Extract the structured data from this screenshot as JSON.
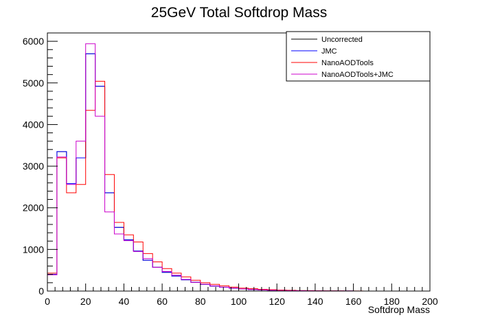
{
  "chart_data": {
    "type": "line",
    "title": "25GeV Total Softdrop Mass",
    "xlabel": "Softdrop Mass",
    "ylabel": "",
    "xlim": [
      0,
      200
    ],
    "ylim": [
      0,
      6200
    ],
    "x_ticks": [
      0,
      20,
      40,
      60,
      80,
      100,
      120,
      140,
      160,
      180,
      200
    ],
    "y_ticks": [
      0,
      1000,
      2000,
      3000,
      4000,
      5000,
      6000
    ],
    "grid": false,
    "legend_placement": "top-right",
    "bin_edges": [
      0,
      5,
      10,
      15,
      20,
      25,
      30,
      35,
      40,
      45,
      50,
      55,
      60,
      65,
      70,
      75,
      80,
      85,
      90,
      95,
      100,
      105,
      110,
      115,
      120,
      125,
      130,
      135,
      140,
      145,
      150,
      155,
      160,
      165,
      170,
      175,
      180,
      185,
      190,
      195,
      200
    ],
    "series": [
      {
        "name": "Uncorrected",
        "color": "#000000",
        "values": [
          400,
          3350,
          2580,
          3200,
          5700,
          4920,
          2360,
          1530,
          1230,
          960,
          740,
          570,
          450,
          360,
          270,
          210,
          160,
          120,
          90,
          70,
          50,
          35,
          28,
          20,
          15,
          10,
          8,
          6,
          4,
          3,
          2,
          2,
          1,
          1,
          1,
          0,
          0,
          0,
          0,
          0
        ]
      },
      {
        "name": "JMC",
        "color": "#0000ff",
        "values": [
          400,
          3350,
          2580,
          3200,
          5700,
          4920,
          2360,
          1530,
          1230,
          960,
          740,
          570,
          450,
          360,
          270,
          210,
          160,
          120,
          90,
          70,
          50,
          35,
          28,
          20,
          15,
          10,
          8,
          6,
          4,
          3,
          2,
          2,
          1,
          1,
          1,
          0,
          0,
          0,
          0,
          0
        ]
      },
      {
        "name": "NanoAODTools",
        "color": "#ff0000",
        "values": [
          430,
          3200,
          2360,
          2560,
          4340,
          5040,
          2800,
          1650,
          1350,
          1180,
          900,
          700,
          540,
          430,
          340,
          260,
          200,
          160,
          125,
          95,
          70,
          55,
          42,
          32,
          24,
          18,
          13,
          10,
          7,
          5,
          4,
          3,
          2,
          1,
          1,
          1,
          0,
          0,
          0,
          0
        ]
      },
      {
        "name": "NanoAODTools+JMC",
        "color": "#cc00cc",
        "values": [
          390,
          3220,
          2560,
          3600,
          5940,
          4200,
          1900,
          1370,
          1210,
          950,
          780,
          570,
          470,
          380,
          280,
          210,
          165,
          125,
          95,
          72,
          52,
          38,
          28,
          20,
          15,
          10,
          8,
          6,
          4,
          3,
          2,
          2,
          1,
          1,
          1,
          0,
          0,
          0,
          0,
          0
        ]
      }
    ]
  }
}
